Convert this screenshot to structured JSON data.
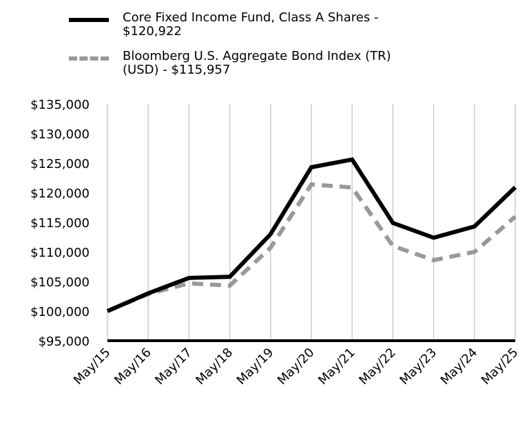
{
  "chart_data": {
    "type": "line",
    "categories": [
      "May/15",
      "May/16",
      "May/17",
      "May/18",
      "May/19",
      "May/20",
      "May/21",
      "May/22",
      "May/23",
      "May/24",
      "May/25"
    ],
    "series": [
      {
        "name": "Core Fixed Income Fund, Class A Shares - $120,922",
        "color": "#000000",
        "dash": "solid",
        "values": [
          100000,
          103000,
          105600,
          105800,
          113000,
          124300,
          125600,
          114900,
          112400,
          114300,
          120922
        ]
      },
      {
        "name": "Bloomberg U.S. Aggregate Bond Index (TR) (USD) - $115,957",
        "color": "#999999",
        "dash": "dashed",
        "values": [
          100000,
          102900,
          104700,
          104300,
          110700,
          121400,
          120900,
          111000,
          108600,
          110000,
          115957
        ]
      }
    ],
    "ylim": [
      95000,
      135000
    ],
    "yticks": [
      "$95,000",
      "$100,000",
      "$105,000",
      "$110,000",
      "$115,000",
      "$120,000",
      "$125,000",
      "$130,000",
      "$135,000"
    ],
    "ytick_values": [
      95000,
      100000,
      105000,
      110000,
      115000,
      120000,
      125000,
      130000,
      135000
    ],
    "grid": "vertical",
    "legend_position": "top-left"
  }
}
